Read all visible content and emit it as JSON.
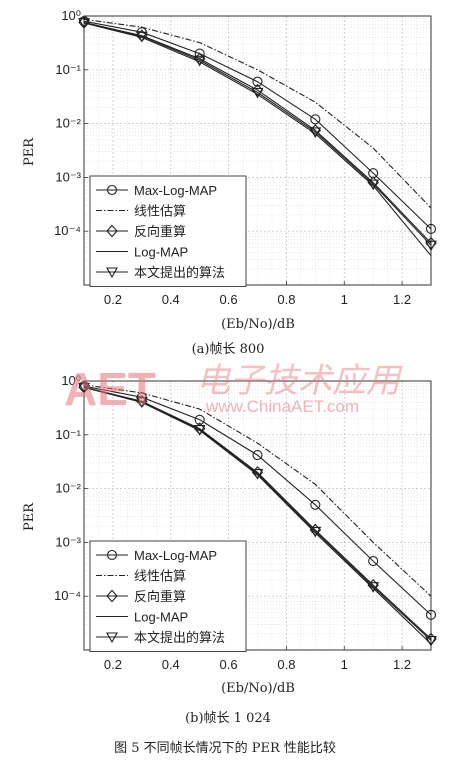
{
  "chart_data": [
    {
      "type": "line",
      "caption": "(a)帧长 800",
      "xlabel": "(Eb/No)/dB",
      "ylabel": "PER",
      "xlim": [
        0.1,
        1.3
      ],
      "ylim": [
        1e-05,
        1
      ],
      "yscale": "log",
      "xticks": [
        "0.2",
        "0.4",
        "0.6",
        "0.8",
        "1",
        "1.2"
      ],
      "grid": true,
      "legend_position": "bottom-left",
      "x": [
        0.1,
        0.3,
        0.5,
        0.7,
        0.9,
        1.1,
        1.3
      ],
      "series": [
        {
          "name": "Max-Log-MAP",
          "style": "solid",
          "marker": "circle",
          "values": [
            0.8,
            0.5,
            0.2,
            0.06,
            0.012,
            0.0012,
            0.00011
          ]
        },
        {
          "name": "线性估算",
          "style": "dashdot",
          "marker": "none",
          "values": [
            0.87,
            0.62,
            0.32,
            0.1,
            0.025,
            0.0035,
            0.00027
          ]
        },
        {
          "name": "反向重算",
          "style": "solid",
          "marker": "diamond",
          "values": [
            0.76,
            0.43,
            0.16,
            0.042,
            0.0075,
            0.0008,
            6e-05
          ]
        },
        {
          "name": "Log-MAP",
          "style": "solid",
          "marker": "none",
          "values": [
            0.74,
            0.4,
            0.14,
            0.035,
            0.0065,
            0.0007,
            3.5e-05
          ]
        },
        {
          "name": "本文提出的算法",
          "style": "solid",
          "marker": "triangle-down",
          "values": [
            0.75,
            0.42,
            0.15,
            0.038,
            0.007,
            0.00075,
            5.5e-05
          ]
        }
      ]
    },
    {
      "type": "line",
      "caption": "(b)帧长 1 024",
      "xlabel": "(Eb/No)/dB",
      "ylabel": "PER",
      "xlim": [
        0.1,
        1.3
      ],
      "ylim": [
        1e-05,
        1
      ],
      "yscale": "log",
      "xticks": [
        "0.2",
        "0.4",
        "0.6",
        "0.8",
        "1",
        "1.2"
      ],
      "grid": true,
      "legend_position": "bottom-left",
      "x": [
        0.1,
        0.3,
        0.5,
        0.7,
        0.9,
        1.1,
        1.3
      ],
      "series": [
        {
          "name": "Max-Log-MAP",
          "style": "solid",
          "marker": "circle",
          "values": [
            0.8,
            0.5,
            0.19,
            0.042,
            0.005,
            0.00045,
            4.5e-05
          ]
        },
        {
          "name": "线性估算",
          "style": "dashdot",
          "marker": "none",
          "values": [
            0.85,
            0.6,
            0.3,
            0.07,
            0.012,
            0.001,
            0.0001
          ]
        },
        {
          "name": "反向重算",
          "style": "solid",
          "marker": "diamond",
          "values": [
            0.77,
            0.42,
            0.13,
            0.02,
            0.0017,
            0.00016,
            1.6e-05
          ]
        },
        {
          "name": "Log-MAP",
          "style": "solid",
          "marker": "none",
          "values": [
            0.76,
            0.4,
            0.12,
            0.018,
            0.0015,
            0.00014,
            1.3e-05
          ]
        },
        {
          "name": "本文提出的算法",
          "style": "solid",
          "marker": "triangle-down",
          "values": [
            0.76,
            0.41,
            0.125,
            0.019,
            0.0016,
            0.00015,
            1.5e-05
          ]
        }
      ]
    }
  ],
  "figure_caption": "图 5   不同帧长情况下的 PER 性能比较",
  "watermark": {
    "logo": "AET",
    "chinese": "电子技术应用",
    "url": "www.ChinaAET.com"
  }
}
